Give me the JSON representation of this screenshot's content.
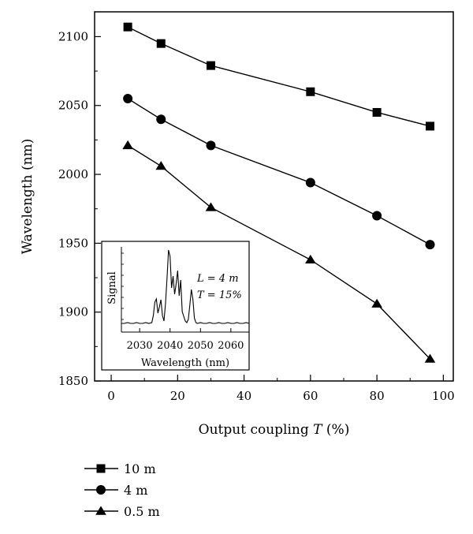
{
  "chart_data": {
    "type": "line",
    "title": "",
    "xlabel": "Output coupling",
    "xlabel_var": "T",
    "xlabel_unit": "(%)",
    "ylabel": "Wavelength (nm)",
    "xlim": [
      -5,
      103
    ],
    "ylim": [
      1850,
      2118
    ],
    "xticks": [
      0,
      20,
      40,
      60,
      80,
      100
    ],
    "yticks": [
      1850,
      1900,
      1950,
      2000,
      2050,
      2100
    ],
    "legend_position": "bottom-left, below plot",
    "series": [
      {
        "name": "10 m",
        "marker": "square",
        "x": [
          5,
          15,
          30,
          60,
          80,
          96
        ],
        "y": [
          2107,
          2095,
          2079,
          2060,
          2045,
          2035
        ]
      },
      {
        "name": "4 m",
        "marker": "circle",
        "x": [
          5,
          15,
          30,
          60,
          80,
          96
        ],
        "y": [
          2055,
          2040,
          2021,
          1994,
          1970,
          1949
        ]
      },
      {
        "name": "0.5 m",
        "marker": "triangle",
        "x": [
          5,
          15,
          30,
          60,
          80,
          96
        ],
        "y": [
          2021,
          2006,
          1976,
          1938,
          1906,
          1866
        ]
      }
    ],
    "inset": {
      "type": "line",
      "xlabel": "Wavelength (nm)",
      "ylabel": "Signal",
      "xlim": [
        2024,
        2066
      ],
      "xticks": [
        2030,
        2040,
        2050,
        2060
      ],
      "annotation_L": "L = 4 m",
      "annotation_T": "T = 15%",
      "spectrum_x": [
        2024,
        2025,
        2026,
        2027,
        2028,
        2029,
        2030,
        2031,
        2032,
        2033,
        2034,
        2034.5,
        2035,
        2035.5,
        2036,
        2036.5,
        2037,
        2037.5,
        2038,
        2038.5,
        2039,
        2039.5,
        2040,
        2040.5,
        2041,
        2041.5,
        2042,
        2042.5,
        2043,
        2043.5,
        2044,
        2044.5,
        2045,
        2045.5,
        2046,
        2046.5,
        2047,
        2047.5,
        2048,
        2048.5,
        2049,
        2050,
        2051,
        2052,
        2053,
        2054,
        2055,
        2056,
        2057,
        2058,
        2059,
        2060,
        2061,
        2062,
        2063,
        2064,
        2065,
        2066
      ],
      "spectrum_y": [
        0.05,
        0.05,
        0.06,
        0.05,
        0.05,
        0.06,
        0.05,
        0.05,
        0.06,
        0.05,
        0.06,
        0.15,
        0.32,
        0.36,
        0.18,
        0.26,
        0.35,
        0.15,
        0.08,
        0.3,
        0.62,
        0.98,
        0.9,
        0.5,
        0.65,
        0.42,
        0.55,
        0.72,
        0.4,
        0.6,
        0.2,
        0.14,
        0.08,
        0.06,
        0.1,
        0.28,
        0.48,
        0.36,
        0.12,
        0.06,
        0.05,
        0.06,
        0.05,
        0.05,
        0.06,
        0.05,
        0.05,
        0.06,
        0.05,
        0.05,
        0.06,
        0.05,
        0.05,
        0.06,
        0.05,
        0.05,
        0.06,
        0.05
      ]
    }
  }
}
